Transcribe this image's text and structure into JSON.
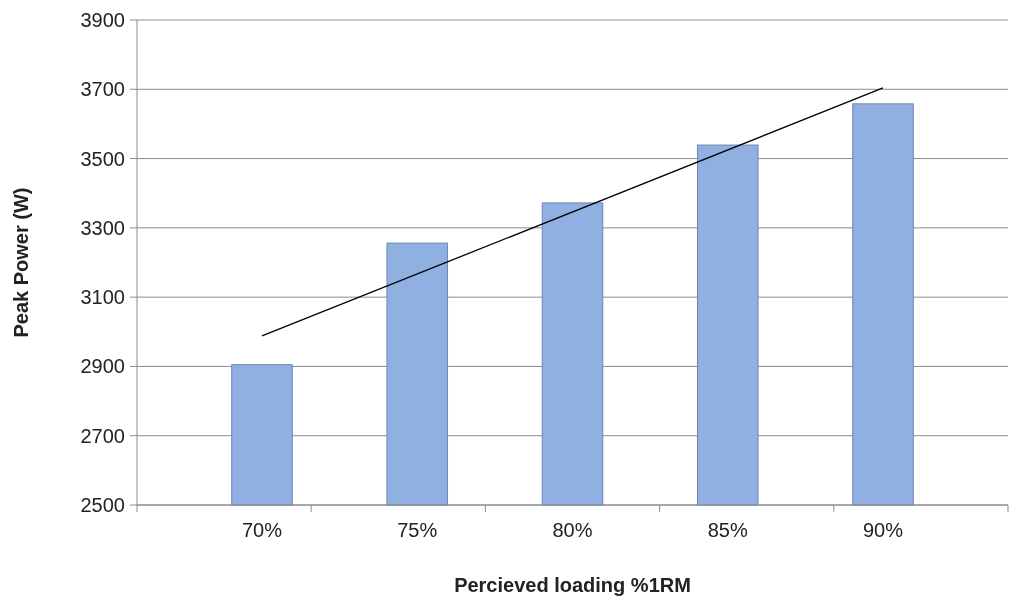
{
  "chart_data": {
    "type": "bar",
    "xlabel": "Percieved loading %1RM",
    "ylabel": "Peak Power (W)",
    "categories": [
      "70%",
      "75%",
      "80%",
      "85%",
      "90%"
    ],
    "series": [
      {
        "color": "#8fb0e0",
        "values": [
          2905,
          3256,
          3372,
          3539,
          3658
        ]
      },
      {
        "type": "line",
        "color": "#000000",
        "x": [
          "70%",
          "90%"
        ],
        "values": [
          2988,
          3704
        ]
      }
    ],
    "ylim": [
      2500,
      3900
    ],
    "yticks": [
      2500,
      2700,
      2900,
      3100,
      3300,
      3500,
      3700,
      3900
    ],
    "grid": "y"
  }
}
